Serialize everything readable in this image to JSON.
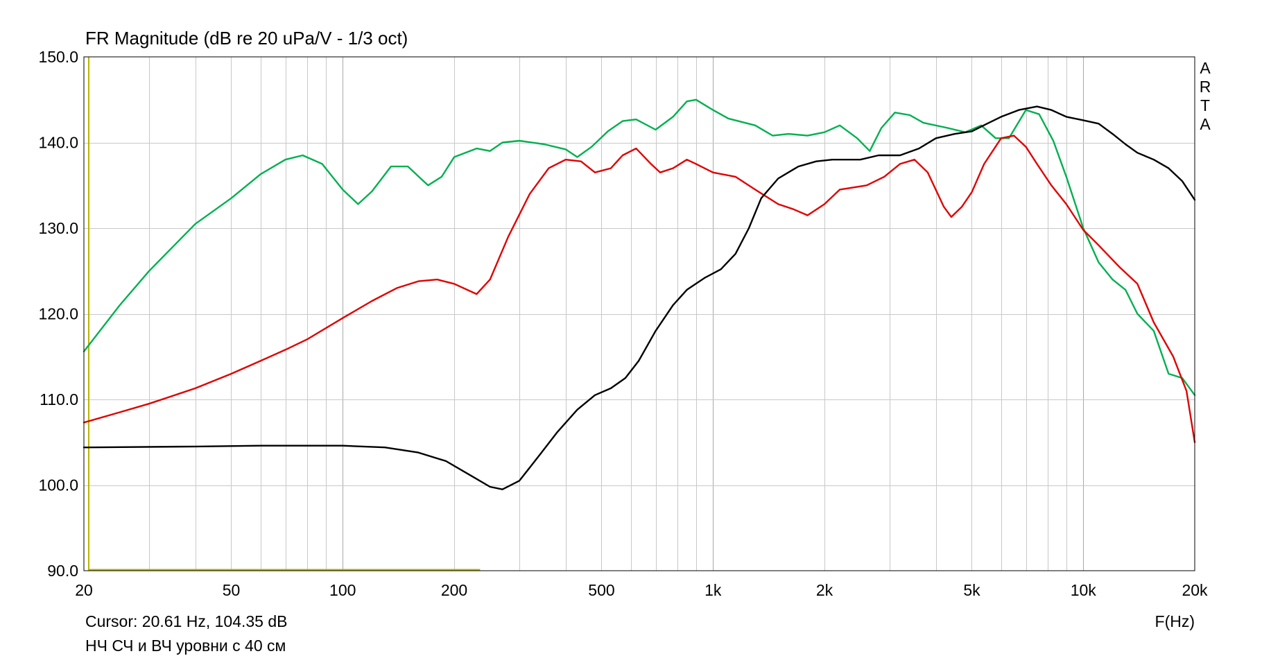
{
  "chart_data": {
    "type": "line",
    "title": "FR Magnitude (dB re 20 uPa/V - 1/3 oct)",
    "xlabel": "F(Hz)",
    "ylabel": "",
    "x_scale": "log",
    "xlim": [
      20,
      20000
    ],
    "ylim": [
      90,
      150
    ],
    "grid": true,
    "watermark": "A R T A",
    "x_ticks": [
      20,
      50,
      100,
      200,
      500,
      1000,
      2000,
      5000,
      10000,
      20000
    ],
    "x_tick_labels": [
      "20",
      "50",
      "100",
      "200",
      "500",
      "1k",
      "2k",
      "5k",
      "10k",
      "20k"
    ],
    "y_ticks": [
      90,
      100,
      110,
      120,
      130,
      140,
      150
    ],
    "y_tick_labels": [
      "90.0",
      "100.0",
      "110.0",
      "120.0",
      "130.0",
      "140.0",
      "150.0"
    ],
    "cursor_text": "Cursor: 20.61 Hz, 104.35 dB",
    "caption": "НЧ СЧ и ВЧ уровни с 40 см",
    "cursor_marker": {
      "x": 20.61,
      "y_from": 90,
      "y_to": 150,
      "x_to": 235,
      "color": "#b5b400"
    },
    "series": [
      {
        "color": "#00b050",
        "points": [
          [
            20,
            115.6
          ],
          [
            25,
            121
          ],
          [
            30,
            125
          ],
          [
            40,
            130.5
          ],
          [
            50,
            133.5
          ],
          [
            60,
            136.3
          ],
          [
            70,
            138
          ],
          [
            78,
            138.5
          ],
          [
            88,
            137.5
          ],
          [
            100,
            134.5
          ],
          [
            110,
            132.8
          ],
          [
            120,
            134.3
          ],
          [
            135,
            137.2
          ],
          [
            150,
            137.2
          ],
          [
            170,
            135
          ],
          [
            185,
            136
          ],
          [
            200,
            138.3
          ],
          [
            230,
            139.3
          ],
          [
            250,
            139
          ],
          [
            270,
            140
          ],
          [
            300,
            140.2
          ],
          [
            350,
            139.8
          ],
          [
            400,
            139.2
          ],
          [
            430,
            138.3
          ],
          [
            470,
            139.5
          ],
          [
            520,
            141.3
          ],
          [
            570,
            142.5
          ],
          [
            620,
            142.7
          ],
          [
            700,
            141.5
          ],
          [
            780,
            143
          ],
          [
            850,
            144.8
          ],
          [
            900,
            145
          ],
          [
            1000,
            143.8
          ],
          [
            1100,
            142.8
          ],
          [
            1300,
            142
          ],
          [
            1450,
            140.8
          ],
          [
            1600,
            141
          ],
          [
            1800,
            140.8
          ],
          [
            2000,
            141.2
          ],
          [
            2200,
            142
          ],
          [
            2450,
            140.5
          ],
          [
            2650,
            139
          ],
          [
            2850,
            141.7
          ],
          [
            3100,
            143.5
          ],
          [
            3400,
            143.2
          ],
          [
            3700,
            142.3
          ],
          [
            4300,
            141.7
          ],
          [
            4800,
            141.2
          ],
          [
            5300,
            142
          ],
          [
            5800,
            140.5
          ],
          [
            6300,
            140.5
          ],
          [
            7000,
            143.8
          ],
          [
            7600,
            143.3
          ],
          [
            8300,
            140.2
          ],
          [
            9000,
            136
          ],
          [
            10000,
            130
          ],
          [
            11000,
            126
          ],
          [
            12000,
            124
          ],
          [
            13000,
            122.8
          ],
          [
            14000,
            120
          ],
          [
            15500,
            118
          ],
          [
            17000,
            113
          ],
          [
            18500,
            112.5
          ],
          [
            20000,
            110.5
          ]
        ]
      },
      {
        "color": "#e00000",
        "points": [
          [
            20,
            107.3
          ],
          [
            25,
            108.5
          ],
          [
            30,
            109.5
          ],
          [
            40,
            111.3
          ],
          [
            50,
            113
          ],
          [
            60,
            114.5
          ],
          [
            70,
            115.8
          ],
          [
            80,
            117
          ],
          [
            100,
            119.5
          ],
          [
            120,
            121.5
          ],
          [
            140,
            123
          ],
          [
            160,
            123.8
          ],
          [
            180,
            124
          ],
          [
            200,
            123.5
          ],
          [
            230,
            122.3
          ],
          [
            250,
            124
          ],
          [
            280,
            129
          ],
          [
            320,
            134
          ],
          [
            360,
            137
          ],
          [
            400,
            138
          ],
          [
            440,
            137.8
          ],
          [
            480,
            136.5
          ],
          [
            530,
            137
          ],
          [
            570,
            138.5
          ],
          [
            620,
            139.3
          ],
          [
            680,
            137.5
          ],
          [
            720,
            136.5
          ],
          [
            780,
            137
          ],
          [
            850,
            138
          ],
          [
            900,
            137.5
          ],
          [
            1000,
            136.5
          ],
          [
            1150,
            136
          ],
          [
            1300,
            134.5
          ],
          [
            1500,
            132.8
          ],
          [
            1650,
            132.2
          ],
          [
            1800,
            131.5
          ],
          [
            2000,
            132.8
          ],
          [
            2200,
            134.5
          ],
          [
            2600,
            135
          ],
          [
            2900,
            136
          ],
          [
            3200,
            137.5
          ],
          [
            3500,
            138
          ],
          [
            3800,
            136.5
          ],
          [
            4200,
            132.5
          ],
          [
            4400,
            131.3
          ],
          [
            4700,
            132.5
          ],
          [
            5000,
            134.2
          ],
          [
            5400,
            137.5
          ],
          [
            6000,
            140.5
          ],
          [
            6500,
            140.8
          ],
          [
            7000,
            139.5
          ],
          [
            7500,
            137.5
          ],
          [
            8200,
            135
          ],
          [
            9000,
            132.8
          ],
          [
            10000,
            129.8
          ],
          [
            11000,
            128
          ],
          [
            12500,
            125.5
          ],
          [
            14000,
            123.5
          ],
          [
            15500,
            119
          ],
          [
            17500,
            115
          ],
          [
            19000,
            111
          ],
          [
            20000,
            105
          ]
        ]
      },
      {
        "color": "#000000",
        "points": [
          [
            20,
            104.4
          ],
          [
            40,
            104.5
          ],
          [
            60,
            104.6
          ],
          [
            100,
            104.6
          ],
          [
            130,
            104.4
          ],
          [
            160,
            103.8
          ],
          [
            190,
            102.8
          ],
          [
            220,
            101.2
          ],
          [
            250,
            99.8
          ],
          [
            270,
            99.5
          ],
          [
            300,
            100.5
          ],
          [
            340,
            103.5
          ],
          [
            380,
            106.2
          ],
          [
            430,
            108.8
          ],
          [
            480,
            110.5
          ],
          [
            530,
            111.3
          ],
          [
            580,
            112.5
          ],
          [
            630,
            114.5
          ],
          [
            700,
            118
          ],
          [
            780,
            121
          ],
          [
            850,
            122.8
          ],
          [
            950,
            124.2
          ],
          [
            1050,
            125.2
          ],
          [
            1150,
            127
          ],
          [
            1250,
            130
          ],
          [
            1350,
            133.5
          ],
          [
            1500,
            135.8
          ],
          [
            1700,
            137.2
          ],
          [
            1900,
            137.8
          ],
          [
            2100,
            138
          ],
          [
            2500,
            138
          ],
          [
            2800,
            138.5
          ],
          [
            3200,
            138.5
          ],
          [
            3600,
            139.3
          ],
          [
            4000,
            140.5
          ],
          [
            4500,
            141
          ],
          [
            5000,
            141.3
          ],
          [
            5500,
            142.2
          ],
          [
            6000,
            143
          ],
          [
            6700,
            143.8
          ],
          [
            7500,
            144.2
          ],
          [
            8200,
            143.8
          ],
          [
            9000,
            143
          ],
          [
            10000,
            142.6
          ],
          [
            11000,
            142.2
          ],
          [
            12000,
            141
          ],
          [
            13000,
            139.8
          ],
          [
            14000,
            138.8
          ],
          [
            15500,
            138
          ],
          [
            17000,
            137
          ],
          [
            18500,
            135.5
          ],
          [
            20000,
            133.3
          ]
        ]
      }
    ]
  }
}
